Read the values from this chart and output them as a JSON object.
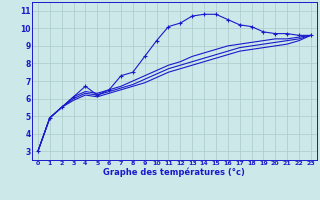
{
  "xlabel": "Graphe des températures (°c)",
  "bg_color": "#cce8e8",
  "line_color": "#1a1acd",
  "grid_color": "#aacccc",
  "xlim": [
    -0.5,
    23.5
  ],
  "ylim": [
    2.5,
    11.5
  ],
  "yticks": [
    3,
    4,
    5,
    6,
    7,
    8,
    9,
    10,
    11
  ],
  "xticks": [
    0,
    1,
    2,
    3,
    4,
    5,
    6,
    7,
    8,
    9,
    10,
    11,
    12,
    13,
    14,
    15,
    16,
    17,
    18,
    19,
    20,
    21,
    22,
    23
  ],
  "line1_x": [
    0,
    1,
    2,
    3,
    4,
    5,
    6,
    7,
    8,
    9,
    10,
    11,
    12,
    13,
    14,
    15,
    16,
    17,
    18,
    19,
    20,
    21,
    22,
    23
  ],
  "line1_y": [
    3.0,
    4.9,
    5.5,
    6.1,
    6.7,
    6.2,
    6.5,
    7.3,
    7.5,
    8.4,
    9.3,
    10.1,
    10.3,
    10.7,
    10.8,
    10.8,
    10.5,
    10.2,
    10.1,
    9.8,
    9.7,
    9.7,
    9.6,
    9.6
  ],
  "line2_x": [
    0,
    1,
    2,
    3,
    4,
    5,
    6,
    7,
    8,
    9,
    10,
    11,
    12,
    13,
    14,
    15,
    16,
    17,
    18,
    19,
    20,
    21,
    22,
    23
  ],
  "line2_y": [
    3.0,
    4.9,
    5.5,
    6.1,
    6.4,
    6.3,
    6.5,
    6.7,
    7.0,
    7.3,
    7.6,
    7.9,
    8.1,
    8.4,
    8.6,
    8.8,
    9.0,
    9.1,
    9.2,
    9.3,
    9.4,
    9.4,
    9.5,
    9.6
  ],
  "line3_x": [
    0,
    1,
    2,
    3,
    4,
    5,
    6,
    7,
    8,
    9,
    10,
    11,
    12,
    13,
    14,
    15,
    16,
    17,
    18,
    19,
    20,
    21,
    22,
    23
  ],
  "line3_y": [
    3.0,
    4.9,
    5.5,
    6.0,
    6.3,
    6.2,
    6.4,
    6.6,
    6.8,
    7.1,
    7.4,
    7.7,
    7.9,
    8.1,
    8.3,
    8.5,
    8.7,
    8.9,
    9.0,
    9.1,
    9.2,
    9.3,
    9.4,
    9.6
  ],
  "line4_x": [
    0,
    1,
    2,
    3,
    4,
    5,
    6,
    7,
    8,
    9,
    10,
    11,
    12,
    13,
    14,
    15,
    16,
    17,
    18,
    19,
    20,
    21,
    22,
    23
  ],
  "line4_y": [
    3.0,
    4.9,
    5.5,
    5.9,
    6.2,
    6.1,
    6.3,
    6.5,
    6.7,
    6.9,
    7.2,
    7.5,
    7.7,
    7.9,
    8.1,
    8.3,
    8.5,
    8.7,
    8.8,
    8.9,
    9.0,
    9.1,
    9.3,
    9.6
  ]
}
